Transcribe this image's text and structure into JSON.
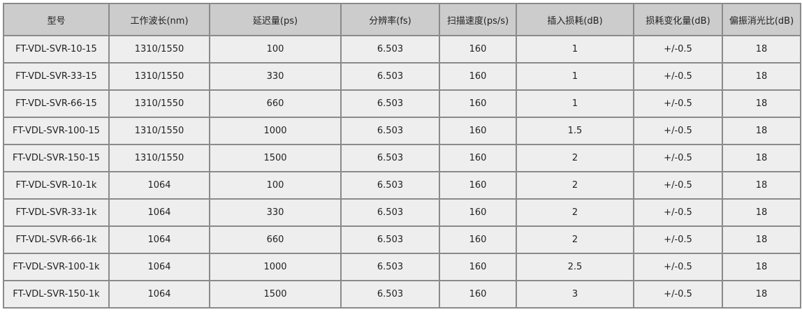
{
  "headers": [
    "型号",
    "工作波长(nm)",
    "延迟量(ps)",
    "分辨率(fs)",
    "扫描速度(ps/s)",
    "插入损耗(dB)",
    "损耗变化量(dB)",
    "偏振消光比(dB)"
  ],
  "rows": [
    [
      "FT-VDL-SVR-10-15",
      "1310/1550",
      "100",
      "6.503",
      "160",
      "1",
      "+/-0.5",
      "18"
    ],
    [
      "FT-VDL-SVR-33-15",
      "1310/1550",
      "330",
      "6.503",
      "160",
      "1",
      "+/-0.5",
      "18"
    ],
    [
      "FT-VDL-SVR-66-15",
      "1310/1550",
      "660",
      "6.503",
      "160",
      "1",
      "+/-0.5",
      "18"
    ],
    [
      "FT-VDL-SVR-100-15",
      "1310/1550",
      "1000",
      "6.503",
      "160",
      "1.5",
      "+/-0.5",
      "18"
    ],
    [
      "FT-VDL-SVR-150-15",
      "1310/1550",
      "1500",
      "6.503",
      "160",
      "2",
      "+/-0.5",
      "18"
    ],
    [
      "FT-VDL-SVR-10-1k",
      "1064",
      "100",
      "6.503",
      "160",
      "2",
      "+/-0.5",
      "18"
    ],
    [
      "FT-VDL-SVR-33-1k",
      "1064",
      "330",
      "6.503",
      "160",
      "2",
      "+/-0.5",
      "18"
    ],
    [
      "FT-VDL-SVR-66-1k",
      "1064",
      "660",
      "6.503",
      "160",
      "2",
      "+/-0.5",
      "18"
    ],
    [
      "FT-VDL-SVR-100-1k",
      "1064",
      "1000",
      "6.503",
      "160",
      "2.5",
      "+/-0.5",
      "18"
    ],
    [
      "FT-VDL-SVR-150-1k",
      "1064",
      "1500",
      "6.503",
      "160",
      "3",
      "+/-0.5",
      "18"
    ]
  ]
}
